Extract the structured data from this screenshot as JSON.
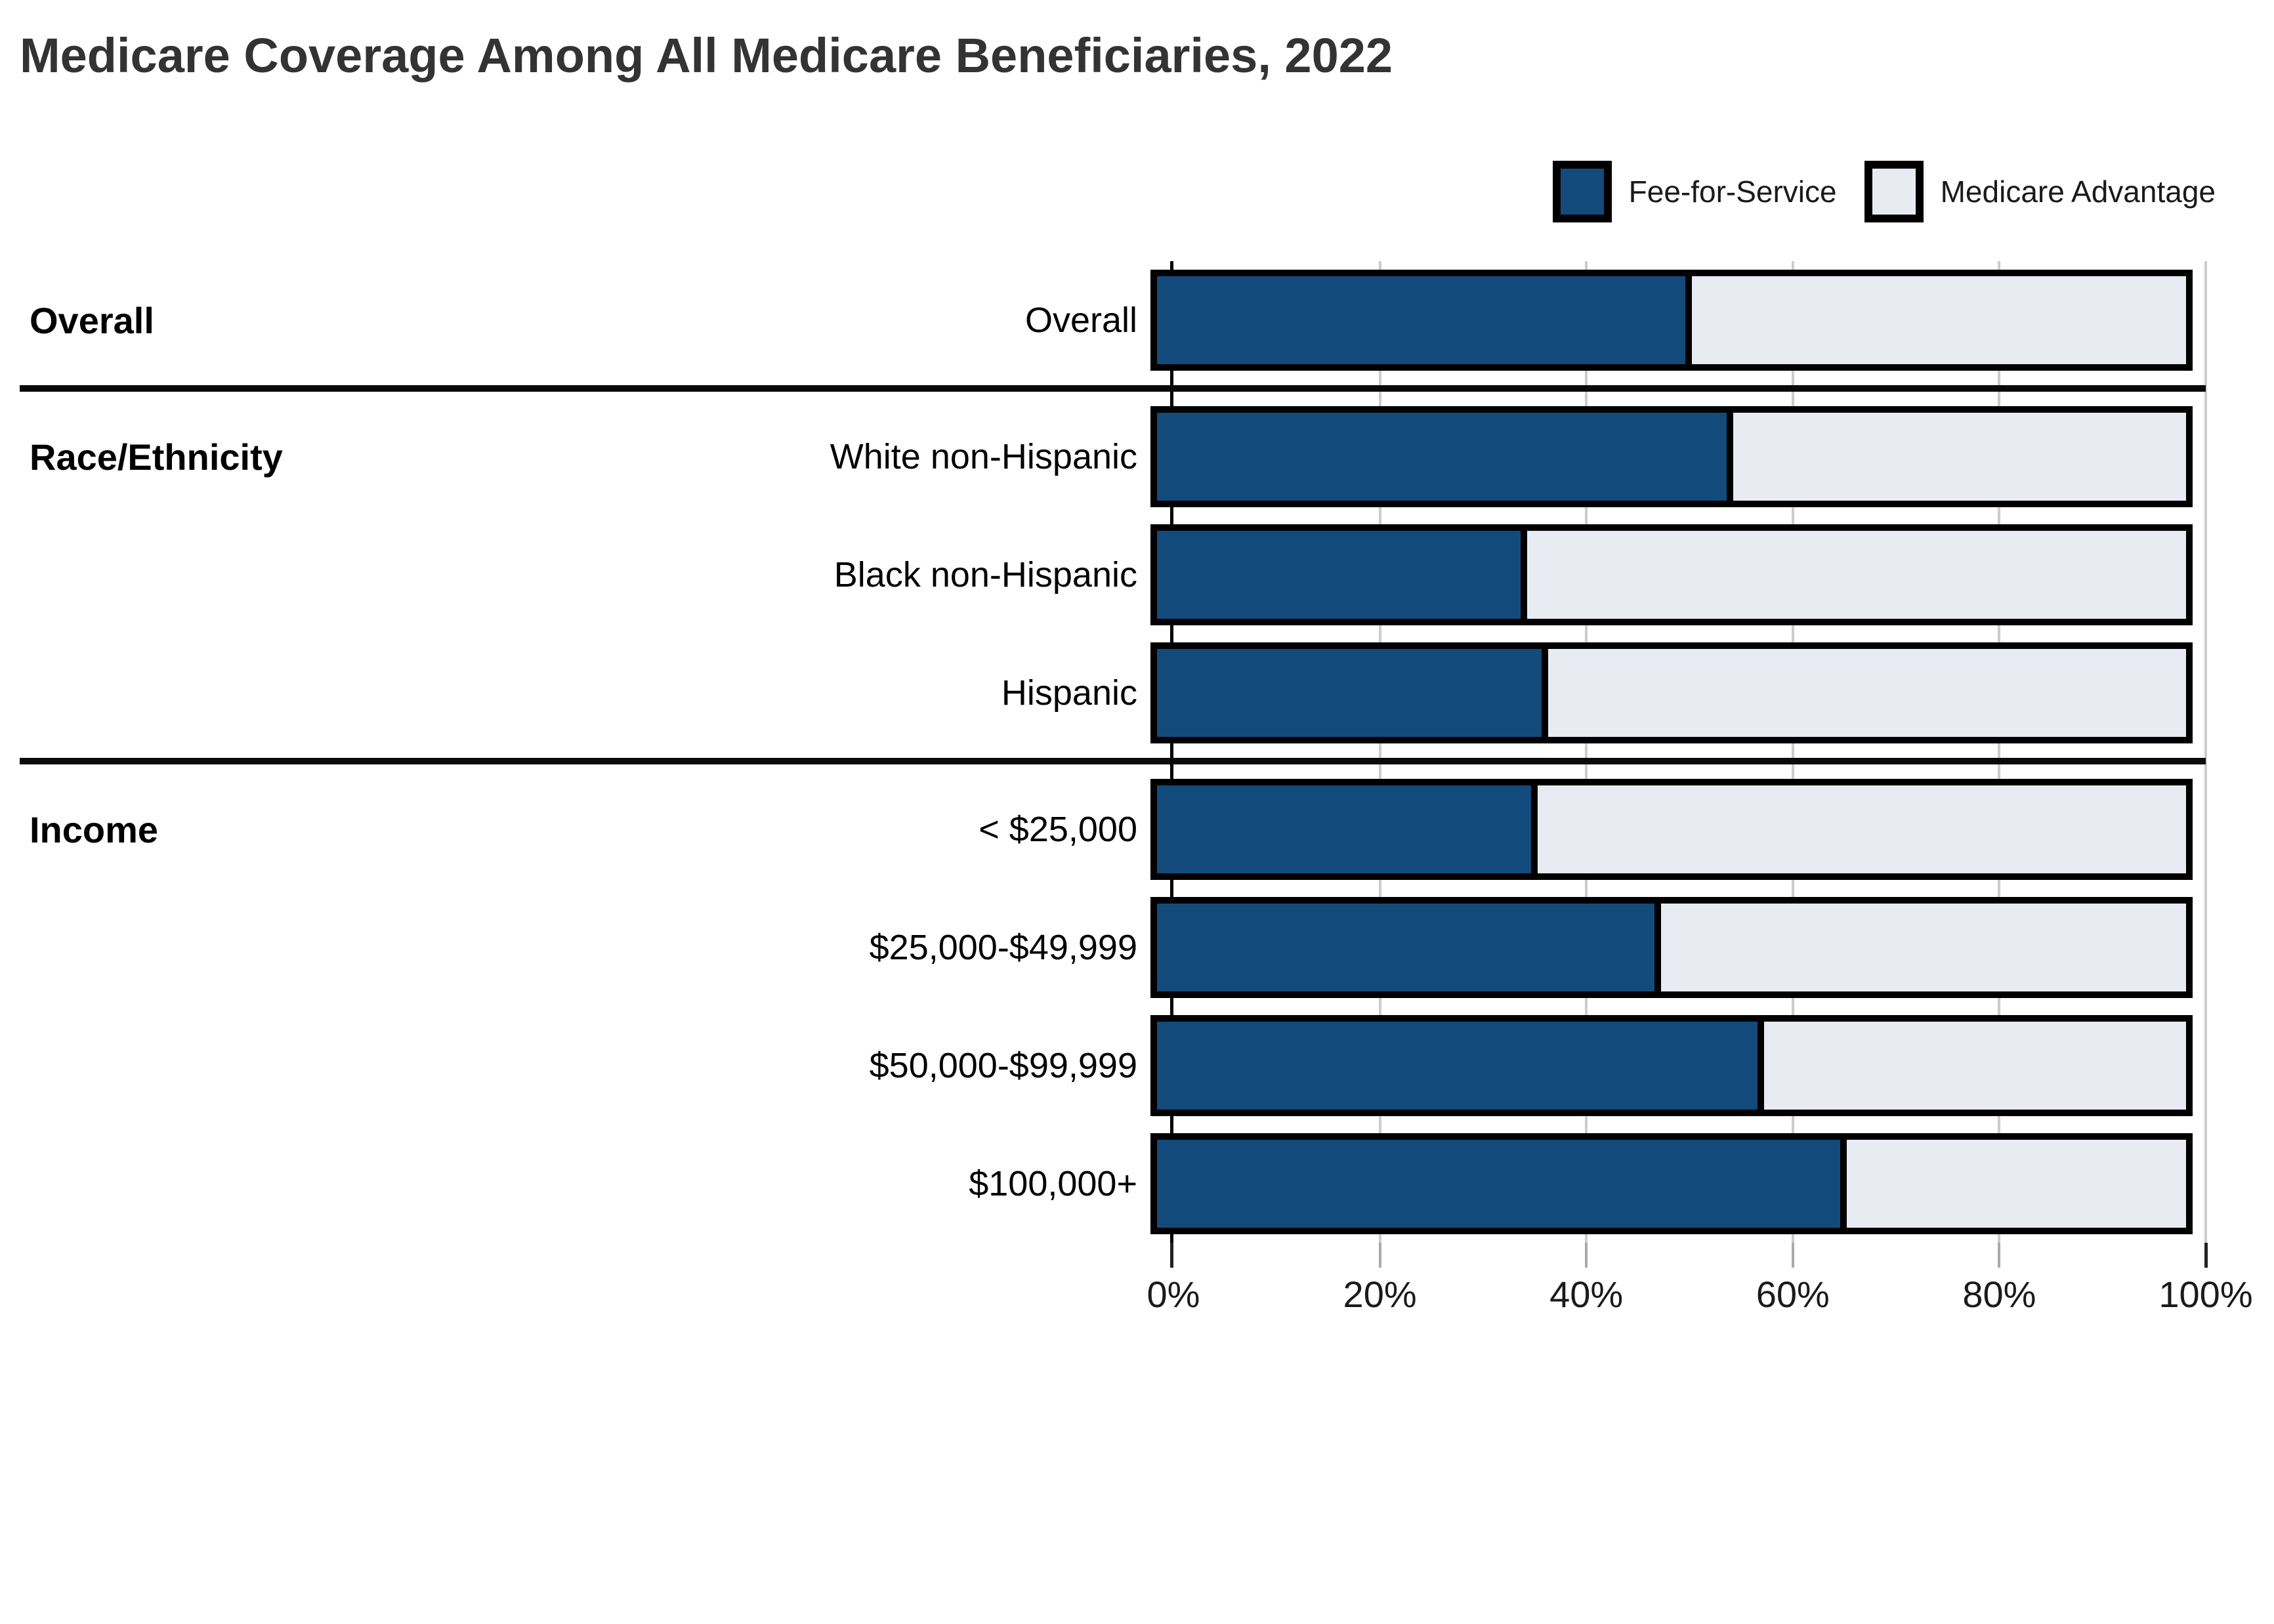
{
  "title": "Medicare Coverage Among All Medicare Beneficiaries, 2022",
  "legend": {
    "items": [
      {
        "label": "Fee-for-Service",
        "color": "#134A7C"
      },
      {
        "label": "Medicare Advantage",
        "color": "#E8EBF2"
      }
    ]
  },
  "colors": {
    "fee_for_service": "#134A7C",
    "medicare_advantage": "#E8EBF2",
    "bar_border": "#000000",
    "gridline": "#CCCCCC",
    "separator": "#0A0A0A",
    "title_text": "#333333",
    "tick_text": "#1A1A1A"
  },
  "chart_data": {
    "type": "bar",
    "orientation": "horizontal-stacked",
    "title": "Medicare Coverage Among All Medicare Beneficiaries, 2022",
    "xlabel": "",
    "ylabel": "",
    "xlim": [
      0,
      100
    ],
    "grid": true,
    "legend_position": "top-right",
    "x_ticks": [
      "0%",
      "20%",
      "40%",
      "60%",
      "80%",
      "100%"
    ],
    "x_tick_values": [
      0,
      20,
      40,
      60,
      80,
      100
    ],
    "categories": [
      "Overall",
      "White non-Hispanic",
      "Black non-Hispanic",
      "Hispanic",
      "< $25,000",
      "$25,000-$49,999",
      "$50,000-$99,999",
      "$100,000+"
    ],
    "series": [
      {
        "name": "Fee-for-Service",
        "values": [
          52,
          56,
          36,
          38,
          37,
          49,
          59,
          67
        ]
      },
      {
        "name": "Medicare Advantage",
        "values": [
          48,
          44,
          64,
          62,
          63,
          51,
          41,
          33
        ]
      }
    ],
    "groups": [
      {
        "label": "Overall",
        "rows": [
          {
            "label": "Overall",
            "fee_for_service": 52,
            "medicare_advantage": 48
          }
        ]
      },
      {
        "label": "Race/Ethnicity",
        "rows": [
          {
            "label": "White non-Hispanic",
            "fee_for_service": 56,
            "medicare_advantage": 44
          },
          {
            "label": "Black non-Hispanic",
            "fee_for_service": 36,
            "medicare_advantage": 64
          },
          {
            "label": "Hispanic",
            "fee_for_service": 38,
            "medicare_advantage": 62
          }
        ]
      },
      {
        "label": "Income",
        "rows": [
          {
            "label": "< $25,000",
            "fee_for_service": 37,
            "medicare_advantage": 63
          },
          {
            "label": "$25,000-$49,999",
            "fee_for_service": 49,
            "medicare_advantage": 51
          },
          {
            "label": "$50,000-$99,999",
            "fee_for_service": 59,
            "medicare_advantage": 41
          },
          {
            "label": "$100,000+",
            "fee_for_service": 67,
            "medicare_advantage": 33
          }
        ]
      }
    ]
  }
}
